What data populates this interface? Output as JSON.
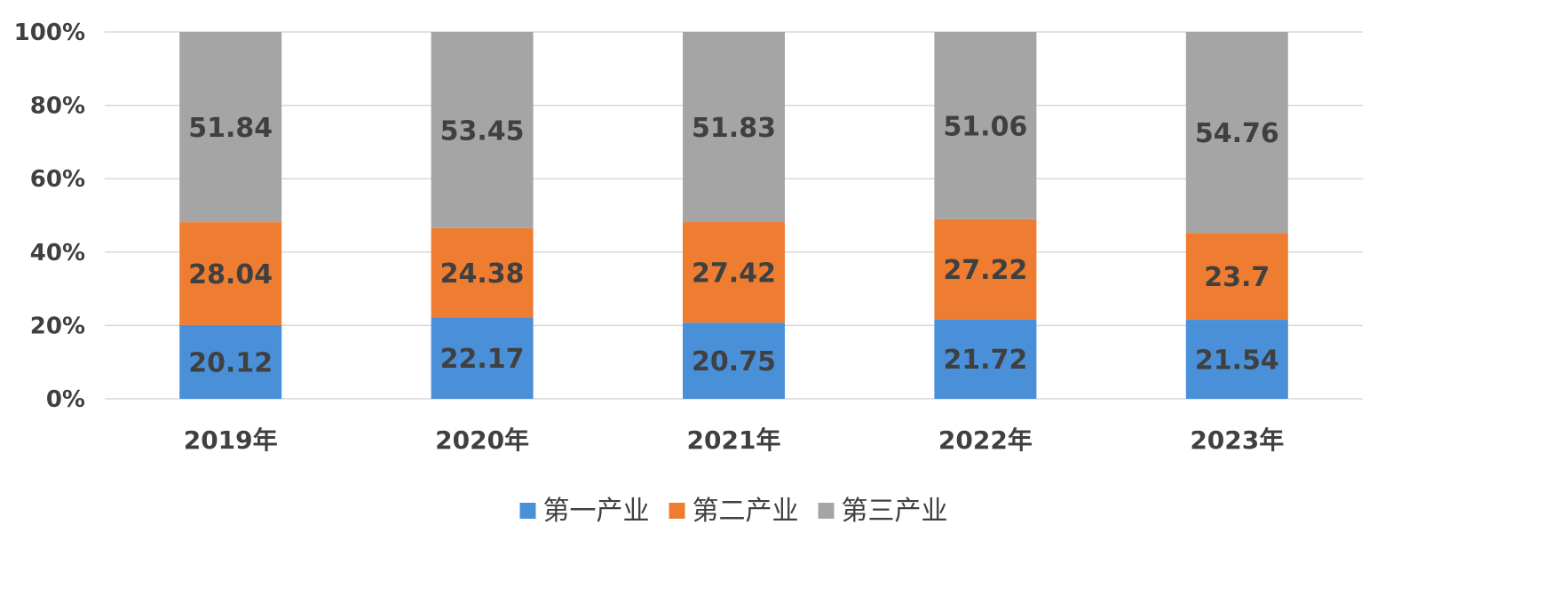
{
  "chart_data": {
    "type": "bar",
    "stacked": true,
    "percent_stacked": true,
    "categories": [
      "2019年",
      "2020年",
      "2021年",
      "2022年",
      "2023年"
    ],
    "series": [
      {
        "name": "第一产业",
        "color": "#4a90d9",
        "values": [
          20.12,
          22.17,
          20.75,
          21.72,
          21.54
        ]
      },
      {
        "name": "第二产业",
        "color": "#ee7d31",
        "values": [
          28.04,
          24.38,
          27.42,
          27.22,
          23.7
        ]
      },
      {
        "name": "第三产业",
        "color": "#a5a5a5",
        "values": [
          51.84,
          53.45,
          51.83,
          51.06,
          54.76
        ]
      }
    ],
    "y_ticks": [
      "0%",
      "20%",
      "40%",
      "60%",
      "80%",
      "100%"
    ],
    "ylim": [
      0,
      100
    ],
    "grid": true,
    "legend_position": "bottom"
  }
}
